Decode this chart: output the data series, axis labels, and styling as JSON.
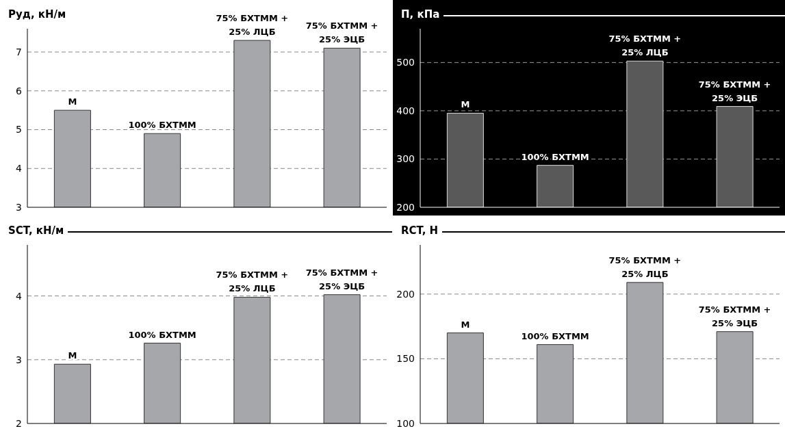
{
  "chart_data": [
    {
      "type": "bar",
      "ylabel": "Руд, кН/м",
      "categories": [
        "М",
        "100% БХТММ",
        "75% БХТММ + 25% ЛЦБ",
        "75% БХТММ + 25% ЭЦБ"
      ],
      "values": [
        5.5,
        4.9,
        7.3,
        7.1
      ],
      "color": "#a6a7aa",
      "ylim": [
        3,
        7.6
      ],
      "yticks": [
        3,
        4,
        5,
        6,
        7
      ],
      "grid": "y",
      "tick_labels": "y"
    },
    {
      "type": "bar",
      "ylabel": "П, кПа",
      "categories": [
        "М",
        "100% БХТММ",
        "75% БХТММ + 25% ЛЦБ",
        "75% БХТММ + 25% ЭЦБ"
      ],
      "values": [
        395,
        287,
        503,
        409
      ],
      "color": "#595959",
      "ylim": [
        200,
        570
      ],
      "yticks": [
        200,
        300,
        400,
        500
      ],
      "grid": "y",
      "tick_labels": "y"
    },
    {
      "type": "bar",
      "ylabel": "SCT, кН/м",
      "categories": [
        "М",
        "100% БХТММ",
        "75% БХТММ + 25% ЛЦБ",
        "75% БХТММ + 25% ЭЦБ"
      ],
      "values": [
        2.93,
        3.26,
        3.98,
        4.02
      ],
      "color": "#a6a7aa",
      "ylim": [
        2,
        4.8
      ],
      "yticks": [
        2,
        3,
        4
      ],
      "grid": "y",
      "tick_labels": "y"
    },
    {
      "type": "bar",
      "ylabel": "RCT, Н",
      "categories": [
        "М",
        "100% БХТММ",
        "75% БХТММ + 25% ЛЦБ",
        "75% БХТММ + 25% ЭЦБ"
      ],
      "values": [
        170,
        161,
        209,
        171
      ],
      "color": "#a6a7aa",
      "ylim": [
        100,
        238
      ],
      "yticks": [
        100,
        150,
        200
      ],
      "grid": "y",
      "tick_labels": "y"
    }
  ]
}
